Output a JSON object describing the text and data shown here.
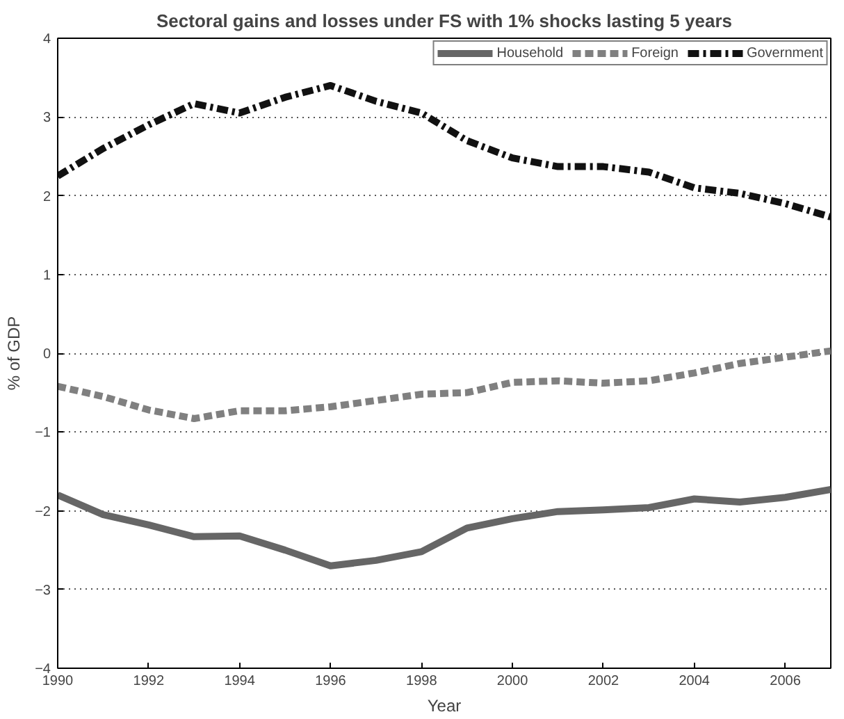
{
  "chart_data": {
    "type": "line",
    "title": "Sectoral gains and losses under FS with 1% shocks lasting 5 years",
    "xlabel": "Year",
    "ylabel": "% of GDP",
    "x": [
      1990,
      1991,
      1992,
      1993,
      1994,
      1995,
      1996,
      1997,
      1998,
      1999,
      2000,
      2001,
      2002,
      2003,
      2004,
      2005,
      2006,
      2007
    ],
    "series": [
      {
        "name": "Household",
        "color": "#666666",
        "line_style": "solid",
        "values": [
          -1.8,
          -2.05,
          -2.18,
          -2.33,
          -2.32,
          -2.5,
          -2.7,
          -2.63,
          -2.52,
          -2.22,
          -2.1,
          -2.01,
          -1.99,
          -1.96,
          -1.85,
          -1.89,
          -1.83,
          -1.73
        ]
      },
      {
        "name": "Foreign",
        "color": "#808080",
        "line_style": "dashed",
        "values": [
          -0.42,
          -0.55,
          -0.72,
          -0.83,
          -0.73,
          -0.73,
          -0.68,
          -0.6,
          -0.52,
          -0.5,
          -0.37,
          -0.35,
          -0.38,
          -0.35,
          -0.25,
          -0.13,
          -0.05,
          0.03
        ]
      },
      {
        "name": "Government",
        "color": "#111111",
        "line_style": "dashdot",
        "values": [
          2.25,
          2.6,
          2.9,
          3.17,
          3.05,
          3.25,
          3.4,
          3.2,
          3.05,
          2.7,
          2.48,
          2.37,
          2.37,
          2.3,
          2.1,
          2.03,
          1.9,
          1.73
        ]
      }
    ],
    "xlim": [
      1990,
      2007
    ],
    "xticks": [
      1990,
      1992,
      1994,
      1996,
      1998,
      2000,
      2002,
      2004,
      2006
    ],
    "ylim": [
      -4,
      4
    ],
    "yticks": [
      -4,
      -3,
      -2,
      -1,
      0,
      1,
      2,
      3,
      4
    ],
    "grid": "y",
    "legend": "top right"
  }
}
